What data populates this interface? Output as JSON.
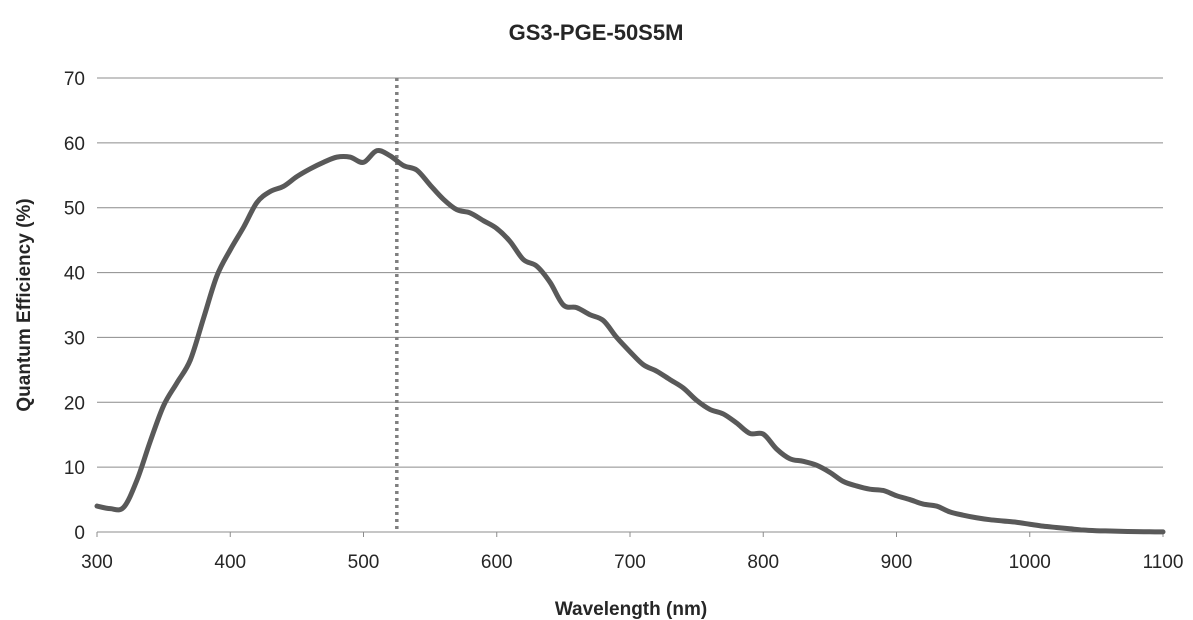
{
  "chart_data": {
    "type": "line",
    "title": "GS3-PGE-50S5M",
    "xlabel": "Wavelength (nm)",
    "ylabel": "Quantum Efficiency (%)",
    "xlim": [
      300,
      1100
    ],
    "ylim": [
      0,
      70
    ],
    "xticks": [
      300,
      400,
      500,
      600,
      700,
      800,
      900,
      1000,
      1100
    ],
    "yticks": [
      0,
      10,
      20,
      30,
      40,
      50,
      60,
      70
    ],
    "grid": "horizontal",
    "legend": "none",
    "series": [
      {
        "color": "#595959",
        "x": [
          300,
          310,
          320,
          330,
          340,
          350,
          360,
          370,
          380,
          390,
          400,
          410,
          420,
          430,
          440,
          450,
          460,
          470,
          480,
          490,
          500,
          510,
          520,
          530,
          540,
          550,
          560,
          570,
          580,
          590,
          600,
          610,
          620,
          630,
          640,
          650,
          660,
          670,
          680,
          690,
          700,
          710,
          720,
          730,
          740,
          750,
          760,
          770,
          780,
          790,
          800,
          810,
          820,
          830,
          840,
          850,
          860,
          870,
          880,
          890,
          900,
          910,
          920,
          930,
          940,
          950,
          960,
          970,
          980,
          990,
          1000,
          1010,
          1020,
          1030,
          1040,
          1050,
          1060,
          1070,
          1080,
          1090,
          1100
        ],
        "y": [
          4,
          3.6,
          3.8,
          8,
          14,
          19.5,
          23,
          26.5,
          33,
          39.5,
          43.5,
          47,
          50.8,
          52.5,
          53.3,
          54.8,
          56,
          57,
          57.8,
          57.8,
          57,
          58.8,
          58,
          56.5,
          55.8,
          53.5,
          51.3,
          49.7,
          49.2,
          48,
          46.8,
          44.8,
          42,
          41,
          38.5,
          35,
          34.6,
          33.5,
          32.6,
          30,
          27.8,
          25.8,
          24.8,
          23.5,
          22.2,
          20.3,
          18.9,
          18.2,
          16.8,
          15.2,
          15.1,
          12.8,
          11.3,
          10.9,
          10.3,
          9.2,
          7.8,
          7.1,
          6.6,
          6.4,
          5.6,
          5.0,
          4.3,
          4.0,
          3.1,
          2.6,
          2.2,
          1.9,
          1.7,
          1.5,
          1.2,
          0.9,
          0.7,
          0.5,
          0.3,
          0.2,
          0.15,
          0.1,
          0.05,
          0.03,
          0.02
        ]
      }
    ],
    "vertical_marker": {
      "x": 525,
      "style": "dotted",
      "color": "#7f7f7f"
    }
  }
}
